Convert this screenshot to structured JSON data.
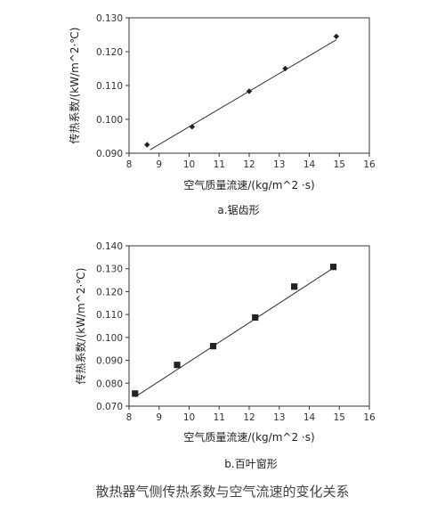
{
  "figure_caption": "散热器气侧传热系数与空气流速的变化关系",
  "chart_data": [
    {
      "type": "scatter",
      "sublabel": "a.锯齿形",
      "xlabel": "空气质量流速/(kg/m^2 ·s)",
      "ylabel": "传热系数/(kW/m^2·℃)",
      "xlim": [
        8,
        16
      ],
      "ylim": [
        0.09,
        0.13
      ],
      "xticks": [
        "8",
        "9",
        "10",
        "11",
        "12",
        "13",
        "14",
        "15",
        "16"
      ],
      "yticks": [
        "0.090",
        "0.100",
        "0.110",
        "0.120",
        "0.130"
      ],
      "marker": "diamond",
      "points": [
        {
          "x": 8.6,
          "y": 0.0925
        },
        {
          "x": 10.1,
          "y": 0.0978
        },
        {
          "x": 12.0,
          "y": 0.1083
        },
        {
          "x": 13.2,
          "y": 0.115
        },
        {
          "x": 14.9,
          "y": 0.1245
        }
      ],
      "fit_line": {
        "x": [
          8.7,
          14.9
        ],
        "y": [
          0.091,
          0.1235
        ]
      }
    },
    {
      "type": "scatter",
      "sublabel": "b.百叶窗形",
      "xlabel": "空气质量流速/(kg/m^2 ·s)",
      "ylabel": "传热系数/(kW/m^2·℃)",
      "xlim": [
        8,
        16
      ],
      "ylim": [
        0.07,
        0.14
      ],
      "xticks": [
        "8",
        "9",
        "10",
        "11",
        "12",
        "13",
        "14",
        "15",
        "16"
      ],
      "yticks": [
        "0.070",
        "0.080",
        "0.090",
        "0.100",
        "0.110",
        "0.120",
        "0.130",
        "0.140"
      ],
      "marker": "square",
      "points": [
        {
          "x": 8.2,
          "y": 0.0755
        },
        {
          "x": 9.6,
          "y": 0.088
        },
        {
          "x": 10.8,
          "y": 0.0962
        },
        {
          "x": 12.2,
          "y": 0.1087
        },
        {
          "x": 13.5,
          "y": 0.1222
        },
        {
          "x": 14.8,
          "y": 0.1308
        }
      ],
      "fit_line": {
        "x": [
          8.2,
          14.8
        ],
        "y": [
          0.074,
          0.1303
        ]
      }
    }
  ]
}
